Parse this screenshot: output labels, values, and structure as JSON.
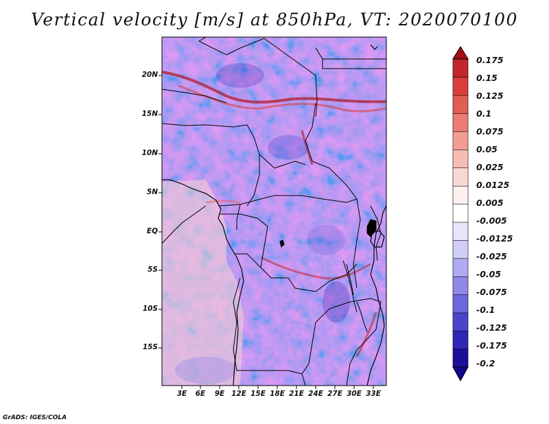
{
  "title": "Vertical velocity [m/s] at 850hPa, VT: 2020070100",
  "y_axis_labels": [
    "20N",
    "15N",
    "10N",
    "5N",
    "EQ",
    "5S",
    "10S",
    "15S"
  ],
  "x_axis_labels": [
    "3E",
    "6E",
    "9E",
    "12E",
    "15E",
    "18E",
    "21E",
    "24E",
    "27E",
    "30E",
    "33E"
  ],
  "colorbar": {
    "labels": [
      "0.175",
      "0.15",
      "0.125",
      "0.1",
      "0.075",
      "0.05",
      "0.025",
      "0.0125",
      "0.005",
      "-0.005",
      "-0.0125",
      "-0.025",
      "-0.05",
      "-0.075",
      "-0.1",
      "-0.125",
      "-0.175",
      "-0.2"
    ],
    "colors": [
      "#a50f15",
      "#c0262c",
      "#d93f3c",
      "#e35d57",
      "#ec7c74",
      "#f29d94",
      "#f7bdb5",
      "#fad8d2",
      "#fdf0ee",
      "#ffffff",
      "#e8e6fb",
      "#d0cdf6",
      "#b0aaf0",
      "#8f88e6",
      "#6e66db",
      "#4d44cc",
      "#3025b5",
      "#1b0f9a",
      "#10078a"
    ]
  },
  "credit": "GrADS: IGES/COLA"
}
